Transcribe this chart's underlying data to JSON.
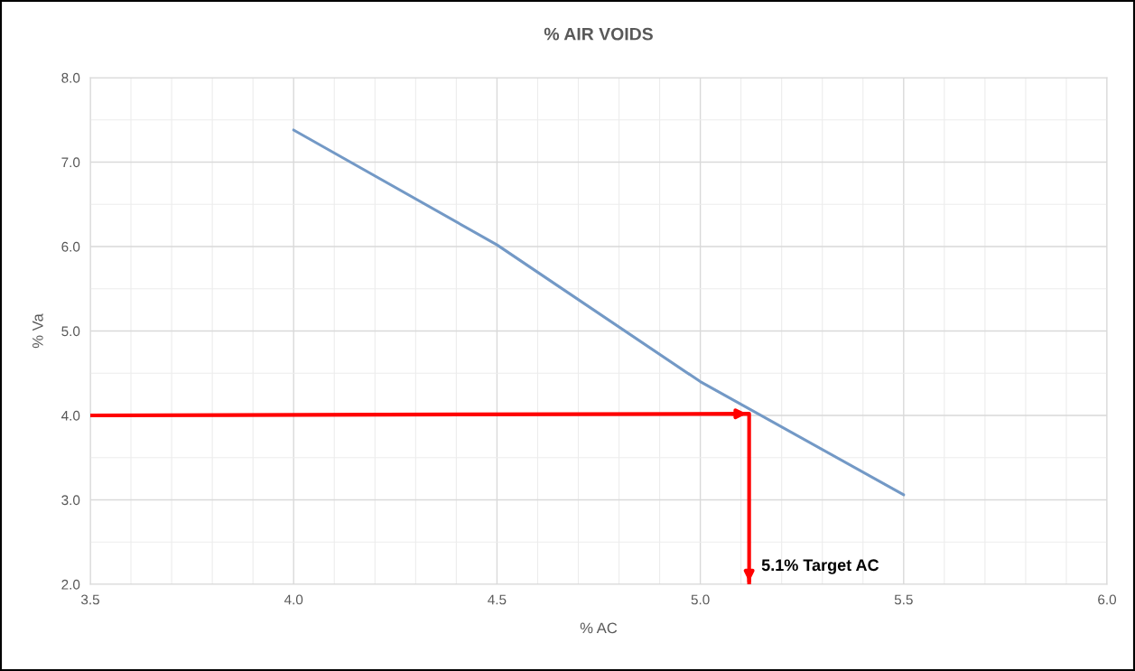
{
  "chart_data": {
    "type": "line",
    "title": "% AIR VOIDS",
    "xlabel": "% AC",
    "ylabel": "% Va",
    "series": [
      {
        "x": [
          4.0,
          4.5,
          5.0,
          5.5
        ],
        "values": [
          7.38,
          6.02,
          4.4,
          3.06
        ],
        "color": "#7399c6"
      },
      {
        "x": [
          3.5,
          5.12,
          5.12
        ],
        "values": [
          4.0,
          4.02,
          2.0
        ],
        "color": "#ff0000"
      }
    ],
    "xlim": [
      3.5,
      6.0
    ],
    "xticks": [
      {
        "value": 3.5,
        "label": "3.5"
      },
      {
        "value": 4.0,
        "label": "4.0"
      },
      {
        "value": 4.5,
        "label": "4.5"
      },
      {
        "value": 5.0,
        "label": "5.0"
      },
      {
        "value": 5.5,
        "label": "5.5"
      },
      {
        "value": 6.0,
        "label": "6.0"
      }
    ],
    "ylim": [
      2.0,
      8.0
    ],
    "yticks": [
      {
        "value": 2.0,
        "label": "2.0"
      },
      {
        "value": 3.0,
        "label": "3.0"
      },
      {
        "value": 4.0,
        "label": "4.0"
      },
      {
        "value": 5.0,
        "label": "5.0"
      },
      {
        "value": 6.0,
        "label": "6.0"
      },
      {
        "value": 7.0,
        "label": "7.0"
      },
      {
        "value": 8.0,
        "label": "8.0"
      }
    ],
    "grid": true,
    "marker": "none",
    "line_style": "solid",
    "annotations": [
      {
        "text": "5.1% Target AC",
        "x": 5.12,
        "y": 2.0
      }
    ]
  }
}
